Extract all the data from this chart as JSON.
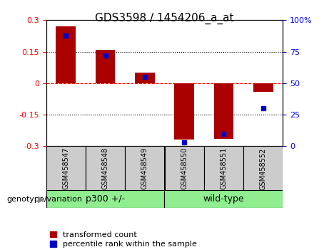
{
  "title": "GDS3598 / 1454206_a_at",
  "samples": [
    "GSM458547",
    "GSM458548",
    "GSM458549",
    "GSM458550",
    "GSM458551",
    "GSM458552"
  ],
  "red_values": [
    0.27,
    0.16,
    0.05,
    -0.27,
    -0.265,
    -0.04
  ],
  "blue_values": [
    88,
    72,
    55,
    3,
    10,
    30
  ],
  "ylim": [
    -0.3,
    0.3
  ],
  "y2lim": [
    0,
    100
  ],
  "yticks": [
    -0.3,
    -0.15,
    0,
    0.15,
    0.3
  ],
  "y2ticks": [
    0,
    25,
    50,
    75,
    100
  ],
  "red_color": "#AA0000",
  "blue_color": "#0000CC",
  "bar_width": 0.5,
  "group_label": "genotype/variation",
  "legend_red": "transformed count",
  "legend_blue": "percentile rank within the sample",
  "bg_color": "#FFFFFF",
  "plot_bg": "#FFFFFF",
  "xlabel_bg": "#CCCCCC",
  "group_bg": "#90EE90"
}
